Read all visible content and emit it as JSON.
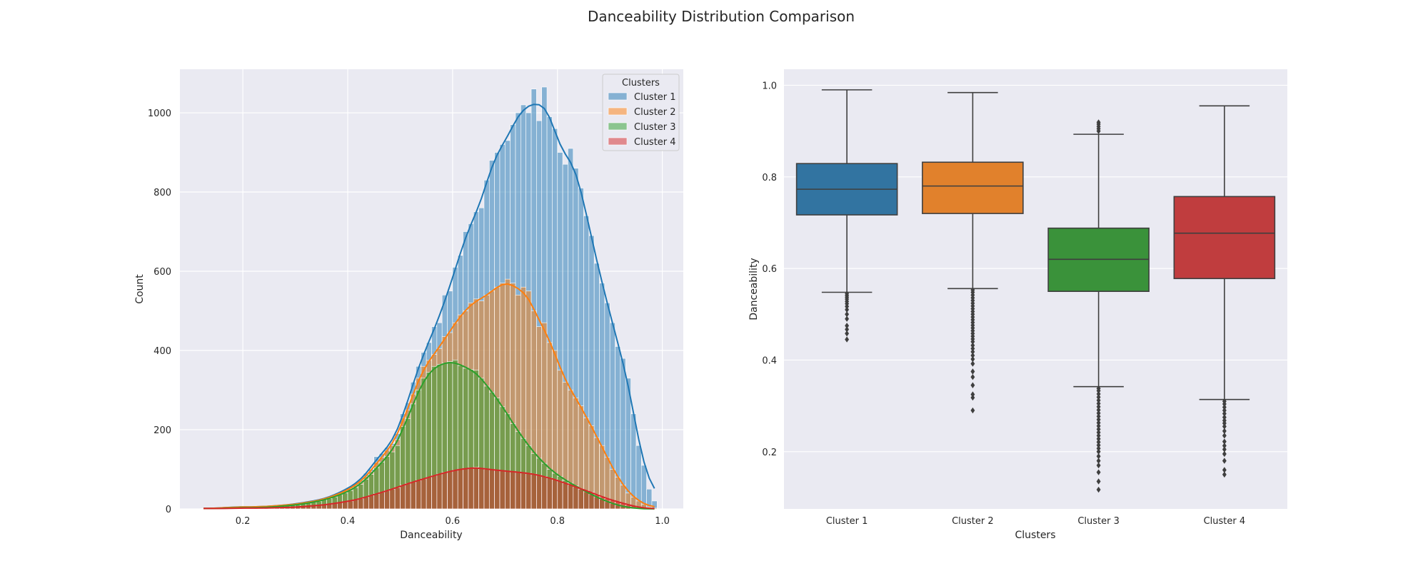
{
  "figure": {
    "title": "Danceability Distribution Comparison"
  },
  "chart_data": [
    {
      "type": "histogram",
      "stacked": true,
      "kde": true,
      "xlabel": "Danceability",
      "ylabel": "Count",
      "xlim": [
        0.08,
        1.04
      ],
      "ylim": [
        0,
        1110
      ],
      "xticks": [
        "0.2",
        "0.4",
        "0.6",
        "0.8",
        "1.0"
      ],
      "yticks": [
        "0",
        "200",
        "400",
        "600",
        "800",
        "1000"
      ],
      "grid": true,
      "legend": {
        "title": "Clusters",
        "placement": "top-right",
        "entries": [
          "Cluster 1",
          "Cluster 2",
          "Cluster 3",
          "Cluster 4"
        ]
      },
      "bin_centers": [
        0.125,
        0.135,
        0.145,
        0.155,
        0.165,
        0.175,
        0.185,
        0.195,
        0.205,
        0.215,
        0.225,
        0.235,
        0.245,
        0.255,
        0.265,
        0.275,
        0.285,
        0.295,
        0.305,
        0.315,
        0.325,
        0.335,
        0.345,
        0.355,
        0.365,
        0.375,
        0.385,
        0.395,
        0.405,
        0.415,
        0.425,
        0.435,
        0.445,
        0.455,
        0.465,
        0.475,
        0.485,
        0.495,
        0.505,
        0.515,
        0.525,
        0.535,
        0.545,
        0.555,
        0.565,
        0.575,
        0.585,
        0.595,
        0.605,
        0.615,
        0.625,
        0.635,
        0.645,
        0.655,
        0.665,
        0.675,
        0.685,
        0.695,
        0.705,
        0.715,
        0.725,
        0.735,
        0.745,
        0.755,
        0.765,
        0.775,
        0.785,
        0.795,
        0.805,
        0.815,
        0.825,
        0.835,
        0.845,
        0.855,
        0.865,
        0.875,
        0.885,
        0.895,
        0.905,
        0.915,
        0.925,
        0.935,
        0.945,
        0.955,
        0.965,
        0.975,
        0.985
      ],
      "series": [
        {
          "name": "Cluster 1",
          "color": "#1f77b4",
          "total": [
            1,
            1,
            2,
            2,
            3,
            4,
            5,
            5,
            5,
            5,
            5,
            6,
            6,
            7,
            8,
            9,
            10,
            12,
            13,
            16,
            18,
            20,
            22,
            26,
            30,
            35,
            42,
            48,
            55,
            63,
            72,
            90,
            100,
            132,
            140,
            155,
            165,
            190,
            240,
            268,
            320,
            360,
            395,
            420,
            460,
            470,
            540,
            550,
            610,
            640,
            700,
            720,
            750,
            760,
            830,
            880,
            900,
            920,
            930,
            970,
            1000,
            1020,
            1000,
            1060,
            980,
            1065,
            990,
            960,
            900,
            870,
            910,
            860,
            810,
            740,
            690,
            620,
            570,
            520,
            470,
            410,
            380,
            330,
            240,
            160,
            110,
            50,
            20
          ]
        },
        {
          "name": "Cluster 2",
          "color": "#ff7f0e",
          "total": [
            1,
            1,
            2,
            2,
            3,
            4,
            4,
            5,
            5,
            5,
            5,
            6,
            6,
            7,
            8,
            9,
            10,
            11,
            12,
            15,
            17,
            19,
            21,
            25,
            29,
            33,
            39,
            45,
            51,
            59,
            68,
            82,
            95,
            118,
            130,
            148,
            160,
            175,
            230,
            250,
            290,
            330,
            360,
            375,
            390,
            405,
            435,
            445,
            470,
            490,
            500,
            520,
            530,
            525,
            540,
            550,
            560,
            570,
            580,
            570,
            540,
            560,
            550,
            500,
            460,
            470,
            420,
            400,
            350,
            320,
            300,
            280,
            260,
            230,
            210,
            180,
            160,
            130,
            100,
            80,
            60,
            40,
            30,
            20,
            12,
            5,
            2
          ]
        },
        {
          "name": "Cluster 3",
          "color": "#2ca02c",
          "total": [
            1,
            1,
            1,
            1,
            2,
            2,
            3,
            3,
            3,
            3,
            3,
            4,
            4,
            5,
            6,
            7,
            8,
            9,
            10,
            13,
            15,
            17,
            19,
            23,
            26,
            30,
            36,
            40,
            46,
            54,
            62,
            75,
            87,
            104,
            118,
            132,
            144,
            160,
            208,
            228,
            265,
            300,
            330,
            345,
            360,
            365,
            368,
            372,
            376,
            362,
            355,
            352,
            350,
            330,
            310,
            295,
            280,
            258,
            240,
            215,
            195,
            178,
            160,
            140,
            128,
            115,
            100,
            90,
            82,
            72,
            65,
            58,
            50,
            43,
            36,
            30,
            24,
            18,
            13,
            9,
            6,
            4,
            2,
            1,
            0,
            0,
            0
          ]
        },
        {
          "name": "Cluster 4",
          "color": "#d62728",
          "total": [
            1,
            1,
            1,
            1,
            1,
            1,
            2,
            2,
            2,
            2,
            2,
            2,
            2,
            3,
            3,
            3,
            4,
            4,
            5,
            6,
            7,
            8,
            9,
            10,
            12,
            14,
            16,
            18,
            20,
            23,
            26,
            30,
            34,
            38,
            42,
            46,
            50,
            54,
            60,
            64,
            68,
            72,
            76,
            80,
            84,
            88,
            92,
            95,
            98,
            100,
            102,
            104,
            105,
            103,
            100,
            99,
            98,
            96,
            95,
            94,
            93,
            91,
            90,
            88,
            85,
            82,
            78,
            74,
            70,
            65,
            60,
            56,
            50,
            46,
            42,
            36,
            30,
            26,
            22,
            18,
            14,
            10,
            7,
            4,
            2,
            1,
            0
          ]
        }
      ]
    },
    {
      "type": "box",
      "xlabel": "Clusters",
      "ylabel": "Danceability",
      "categories": [
        "Cluster 1",
        "Cluster 2",
        "Cluster 3",
        "Cluster 4"
      ],
      "ylim": [
        0.075,
        1.035
      ],
      "yticks": [
        "0.2",
        "0.4",
        "0.6",
        "0.8",
        "1.0"
      ],
      "grid": true,
      "boxes": [
        {
          "name": "Cluster 1",
          "color": "#3274a1",
          "whisker_low": 0.548,
          "q1": 0.717,
          "median": 0.773,
          "q3": 0.829,
          "whisker_high": 0.99,
          "outliers": [
            0.445,
            0.458,
            0.467,
            0.475,
            0.49,
            0.5,
            0.51,
            0.517,
            0.523,
            0.528,
            0.533,
            0.537,
            0.541,
            0.545
          ]
        },
        {
          "name": "Cluster 2",
          "color": "#e1812c",
          "whisker_low": 0.556,
          "q1": 0.72,
          "median": 0.78,
          "q3": 0.832,
          "whisker_high": 0.984,
          "outliers": [
            0.29,
            0.318,
            0.325,
            0.345,
            0.363,
            0.375,
            0.392,
            0.402,
            0.41,
            0.418,
            0.425,
            0.432,
            0.44,
            0.446,
            0.452,
            0.458,
            0.464,
            0.47,
            0.476,
            0.482,
            0.488,
            0.494,
            0.5,
            0.506,
            0.512,
            0.518,
            0.524,
            0.53,
            0.536,
            0.542,
            0.548,
            0.553
          ]
        },
        {
          "name": "Cluster 3",
          "color": "#3a923a",
          "whisker_low": 0.342,
          "q1": 0.55,
          "median": 0.62,
          "q3": 0.688,
          "whisker_high": 0.893,
          "outliers": [
            0.117,
            0.135,
            0.155,
            0.17,
            0.18,
            0.19,
            0.2,
            0.207,
            0.214,
            0.221,
            0.228,
            0.235,
            0.242,
            0.249,
            0.256,
            0.263,
            0.27,
            0.277,
            0.284,
            0.291,
            0.298,
            0.305,
            0.312,
            0.319,
            0.326,
            0.333,
            0.338,
            0.9,
            0.905,
            0.91,
            0.915,
            0.919
          ]
        },
        {
          "name": "Cluster 4",
          "color": "#c03d3e",
          "whisker_low": 0.314,
          "q1": 0.578,
          "median": 0.677,
          "q3": 0.757,
          "whisker_high": 0.955,
          "outliers": [
            0.15,
            0.16,
            0.18,
            0.195,
            0.205,
            0.213,
            0.222,
            0.235,
            0.245,
            0.255,
            0.262,
            0.268,
            0.275,
            0.283,
            0.29,
            0.297,
            0.304,
            0.31
          ]
        }
      ]
    }
  ]
}
